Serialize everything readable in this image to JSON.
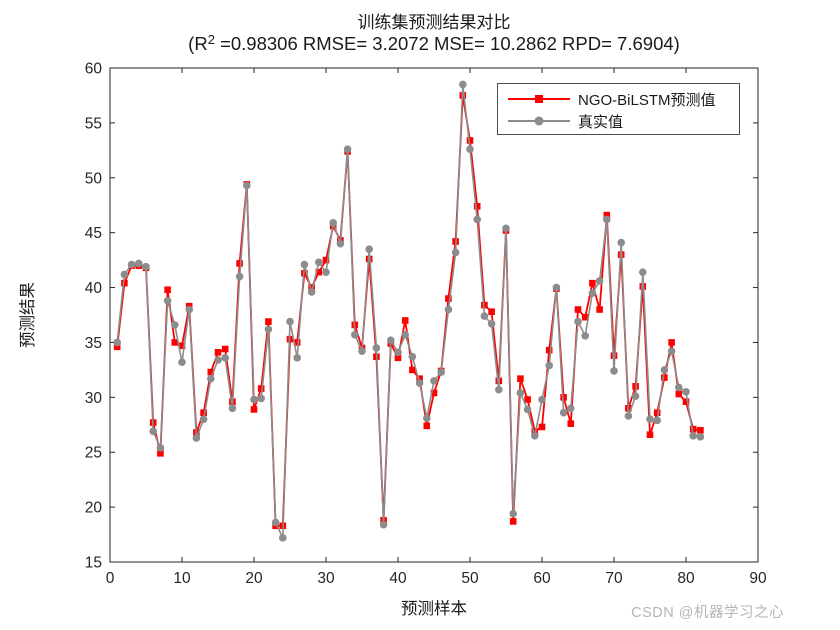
{
  "title": {
    "main": "训练集预测结果对比",
    "subtitle_prefix": "(R",
    "subtitle_sup": "2",
    "subtitle_rest": " =0.98306 RMSE= 3.2072 MSE= 10.2862 RPD= 7.6904)"
  },
  "watermark": "CSDN @机器学习之心",
  "legend": {
    "items": [
      {
        "label": "NGO-BiLSTM预测值",
        "color": "#ff0000",
        "marker": "square"
      },
      {
        "label": "真实值",
        "color": "#8c8c8c",
        "marker": "circle"
      }
    ]
  },
  "chart_data": {
    "type": "line",
    "title": "训练集预测结果对比",
    "subtitle_stats": {
      "R2": "0.98306",
      "RMSE": "3.2072",
      "MSE": "10.2862",
      "RPD": "7.6904"
    },
    "xlabel": "预测样本",
    "ylabel": "预测结果",
    "xlim": [
      0,
      90
    ],
    "ylim": [
      15,
      60
    ],
    "x_ticks": [
      0,
      10,
      20,
      30,
      40,
      50,
      60,
      70,
      80,
      90
    ],
    "y_ticks": [
      15,
      20,
      25,
      30,
      35,
      40,
      45,
      50,
      55,
      60
    ],
    "grid": false,
    "legend_position": "top-right",
    "x_start": 1,
    "series": [
      {
        "name": "NGO-BiLSTM预测值",
        "color": "#ff0000",
        "marker": "square",
        "values": [
          34.6,
          40.4,
          42.0,
          42.0,
          41.8,
          27.7,
          24.9,
          39.8,
          35.0,
          34.7,
          38.3,
          26.8,
          28.6,
          32.3,
          34.1,
          34.4,
          29.6,
          42.2,
          49.4,
          28.9,
          30.8,
          36.9,
          18.3,
          18.3,
          35.3,
          35.0,
          41.3,
          40.0,
          41.4,
          42.5,
          45.6,
          44.3,
          52.4,
          36.6,
          34.5,
          42.6,
          33.7,
          18.8,
          34.9,
          33.6,
          37.0,
          32.5,
          31.7,
          27.4,
          30.4,
          32.4,
          39.0,
          44.2,
          57.5,
          53.4,
          47.4,
          38.4,
          37.8,
          31.5,
          45.2,
          18.7,
          31.7,
          29.8,
          26.9,
          27.3,
          34.3,
          39.9,
          30.0,
          27.6,
          38.0,
          37.3,
          40.4,
          38.0,
          46.6,
          33.8,
          43.0,
          29.0,
          31.0,
          40.1,
          26.6,
          28.6,
          31.8,
          35.0,
          30.3,
          29.6,
          27.1,
          27.0
        ]
      },
      {
        "name": "真实值",
        "color": "#8c8c8c",
        "marker": "circle",
        "values": [
          35.0,
          41.2,
          42.1,
          42.2,
          41.9,
          26.9,
          25.4,
          38.8,
          36.6,
          33.2,
          38.0,
          26.3,
          28.0,
          31.7,
          33.4,
          33.6,
          29.0,
          41.0,
          49.3,
          29.8,
          29.9,
          36.2,
          18.6,
          17.2,
          36.9,
          33.6,
          42.1,
          39.6,
          42.3,
          41.4,
          45.9,
          44.0,
          52.6,
          35.7,
          34.2,
          43.5,
          34.5,
          18.4,
          35.2,
          34.1,
          35.7,
          33.7,
          31.3,
          28.1,
          31.5,
          32.3,
          38.0,
          43.2,
          58.5,
          52.6,
          46.2,
          37.4,
          36.7,
          30.7,
          45.4,
          19.4,
          30.4,
          28.9,
          26.5,
          29.8,
          32.9,
          40.0,
          28.6,
          29.0,
          36.9,
          35.6,
          39.5,
          40.6,
          46.2,
          32.4,
          44.1,
          28.3,
          30.1,
          41.4,
          28.0,
          27.9,
          32.5,
          34.2,
          30.9,
          30.5,
          26.5,
          26.4
        ]
      }
    ]
  }
}
